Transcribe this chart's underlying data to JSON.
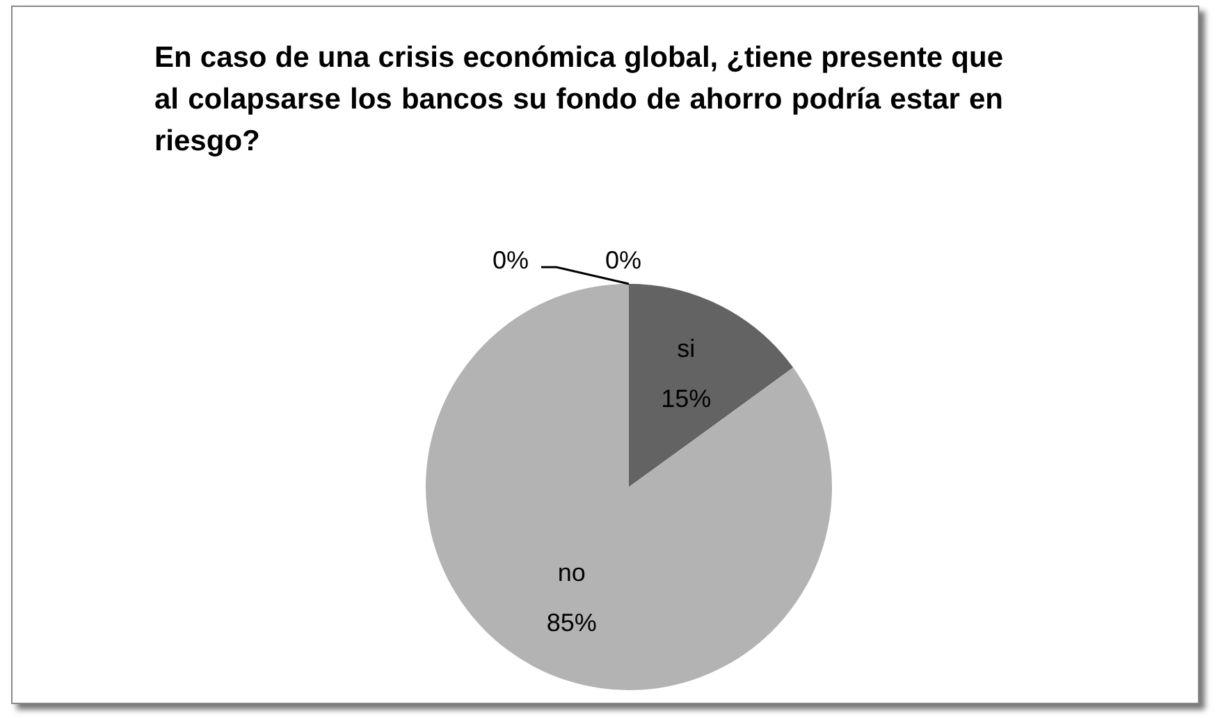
{
  "chart_data": {
    "type": "pie",
    "title": "En caso de una crisis económica global, ¿tiene presente que al colapsarse los bancos su fondo de ahorro podría estar en riesgo?",
    "categories": [
      "si",
      "no",
      null,
      null
    ],
    "values": [
      15,
      85,
      0,
      0
    ],
    "colors": [
      "#636363",
      "#b3b3b3",
      "#8c8c8c",
      "#d9d9d9"
    ],
    "value_labels": [
      "15%",
      "85%",
      "0%",
      "0%"
    ],
    "legend": false
  }
}
